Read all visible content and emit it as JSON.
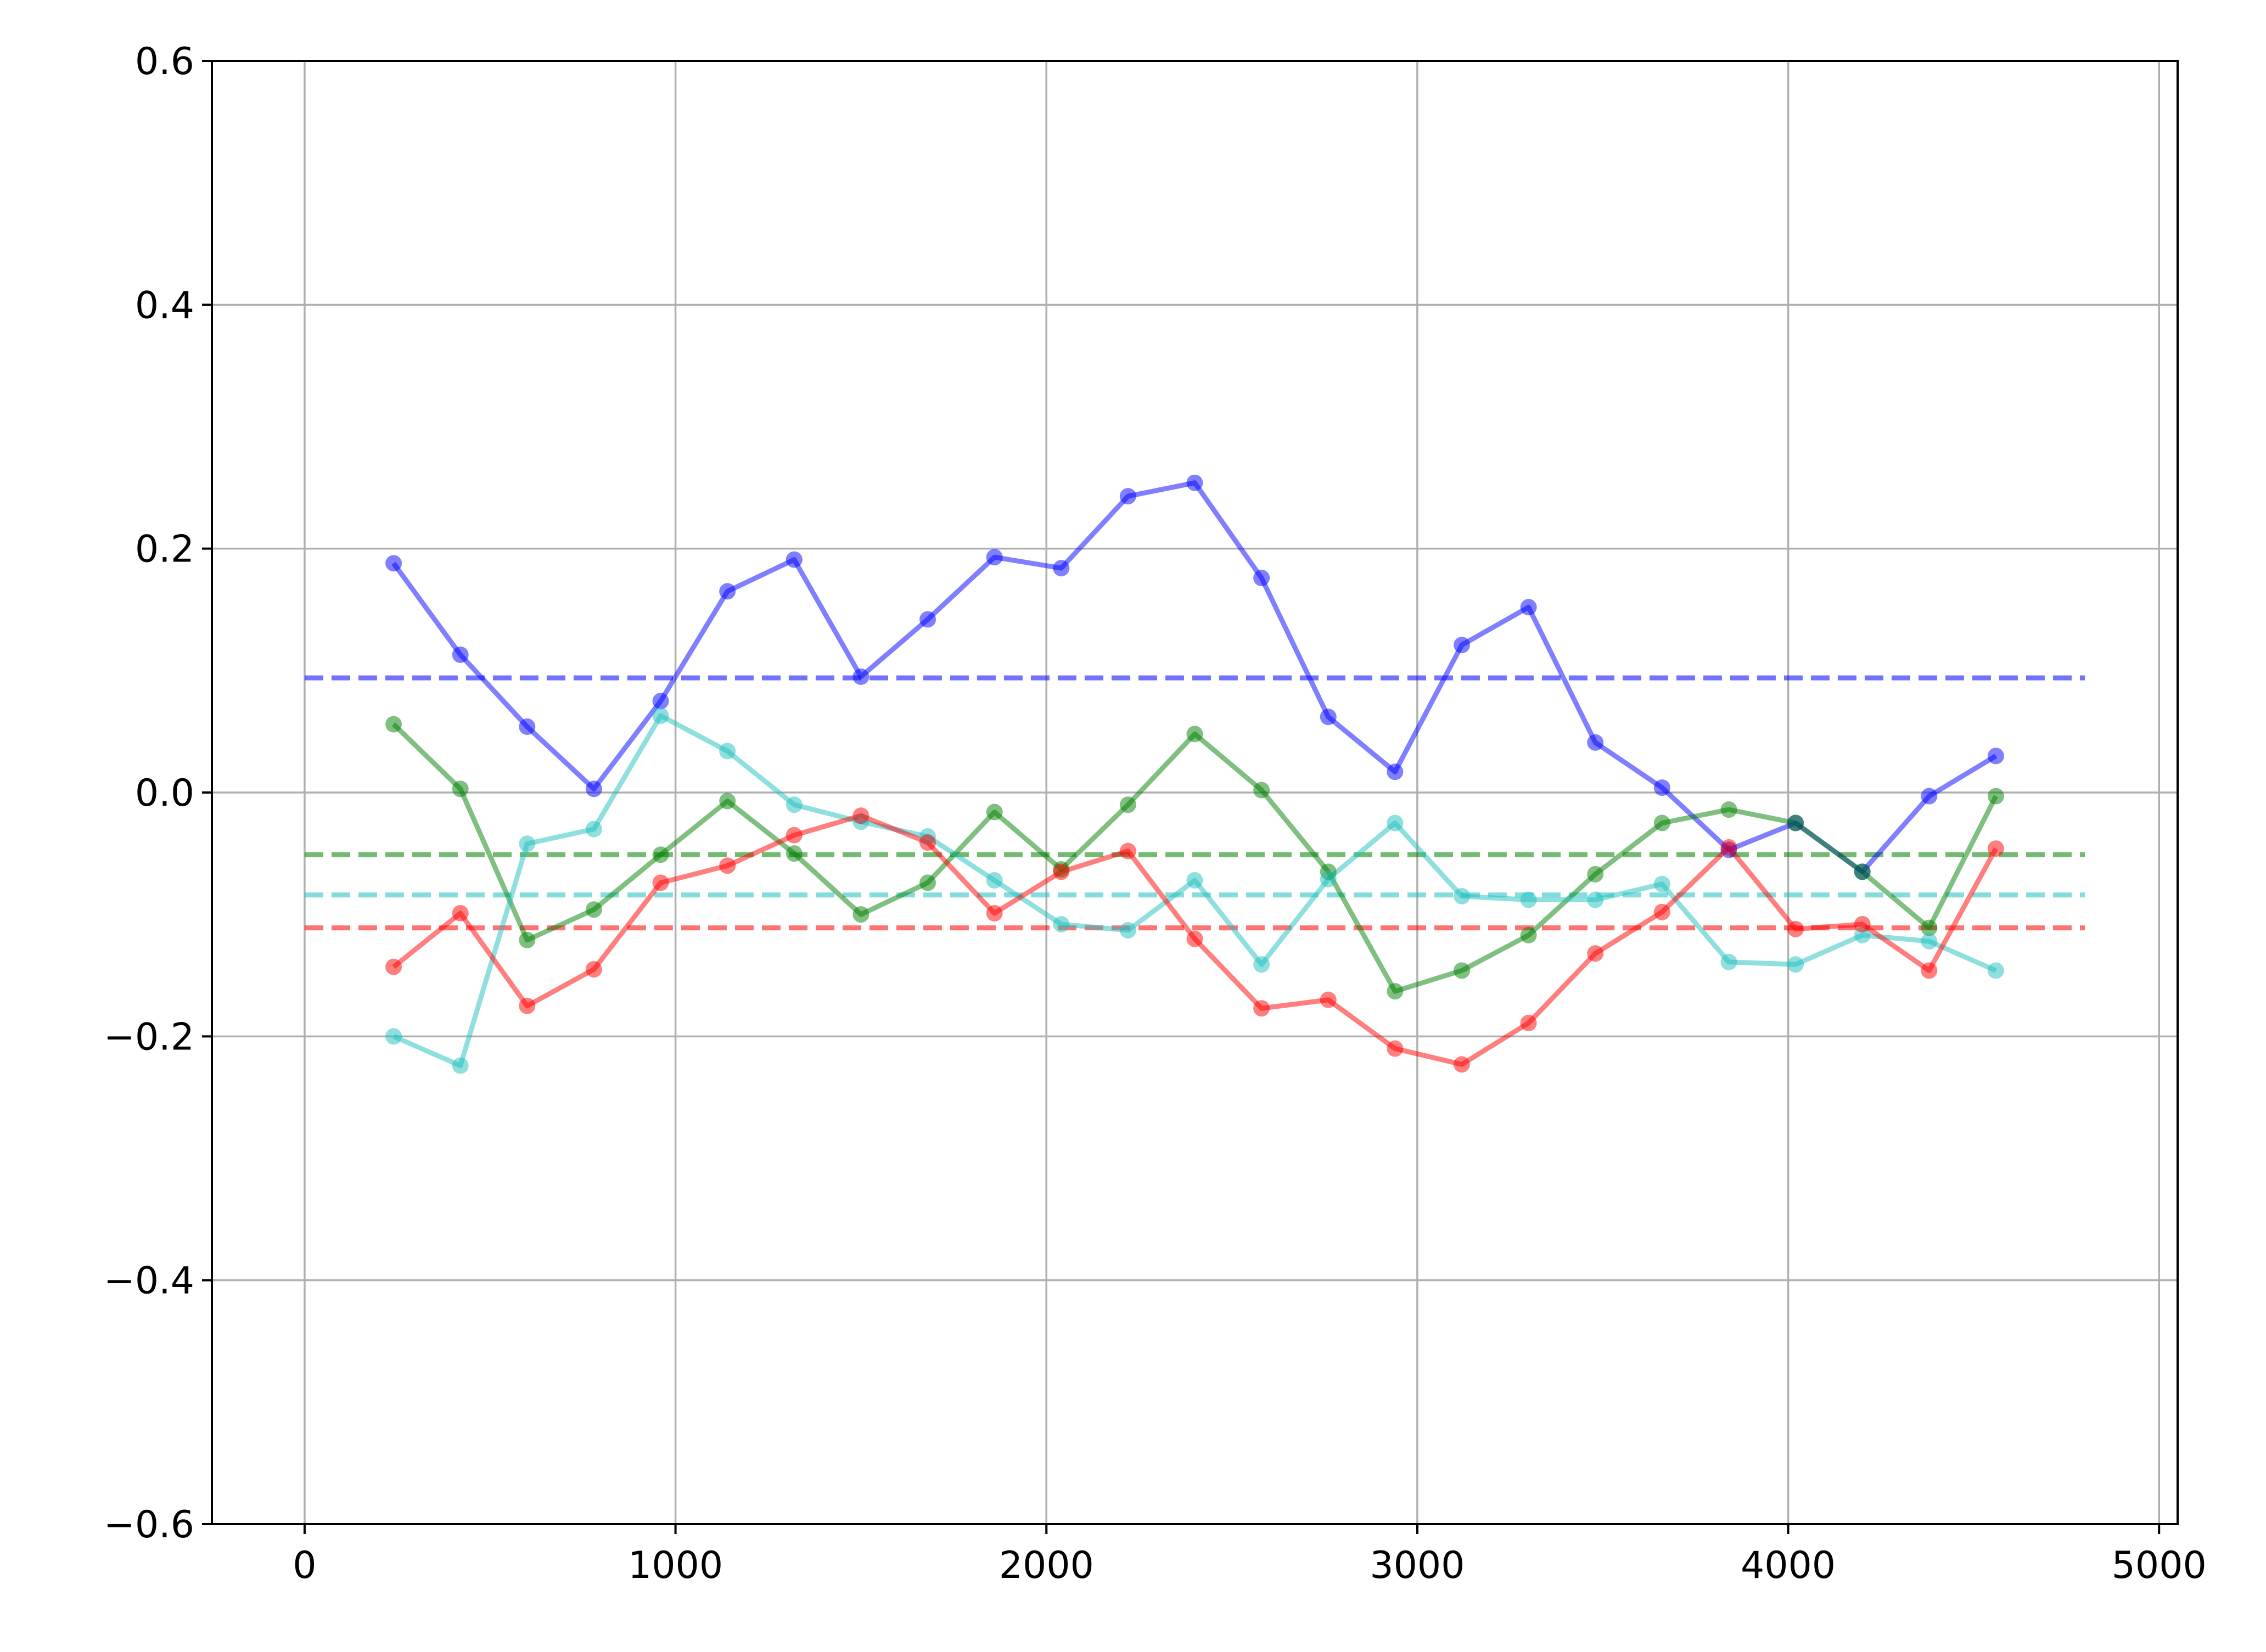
{
  "chart_data": {
    "type": "line",
    "title": "",
    "xlabel": "",
    "ylabel": "",
    "xlim": [
      -250,
      5050
    ],
    "ylim": [
      -0.6,
      0.6
    ],
    "grid": true,
    "x_ticks": [
      0,
      1000,
      2000,
      3000,
      4000,
      5000
    ],
    "x_tick_labels": [
      "0",
      "1000",
      "2000",
      "3000",
      "4000",
      "5000"
    ],
    "y_ticks": [
      -0.6,
      -0.4,
      -0.2,
      0.0,
      0.2,
      0.4,
      0.6
    ],
    "y_tick_labels": [
      "−0.6",
      "−0.4",
      "−0.2",
      "0.0",
      "0.2",
      "0.4",
      "0.6"
    ],
    "x": [
      240,
      420,
      600,
      780,
      960,
      1140,
      1320,
      1500,
      1680,
      1860,
      2040,
      2220,
      2400,
      2580,
      2760,
      2940,
      3120,
      3300,
      3480,
      3660,
      3840,
      4020,
      4200,
      4380,
      4560
    ],
    "series": [
      {
        "color": "#0000ff",
        "values": [
          0.188,
          0.113,
          0.054,
          0.003,
          0.075,
          0.165,
          0.191,
          0.095,
          0.142,
          0.193,
          0.184,
          0.243,
          0.254,
          0.176,
          0.062,
          0.017,
          0.121,
          0.152,
          0.041,
          0.004,
          -0.047,
          -0.025,
          -0.065,
          -0.003,
          0.03
        ],
        "mean": 0.094
      },
      {
        "color": "#008000",
        "values": [
          0.056,
          0.003,
          -0.121,
          -0.096,
          -0.051,
          -0.007,
          -0.05,
          -0.1,
          -0.074,
          -0.016,
          -0.063,
          -0.01,
          0.048,
          0.002,
          -0.065,
          -0.163,
          -0.146,
          -0.117,
          -0.067,
          -0.025,
          -0.014,
          -0.025,
          -0.065,
          -0.111,
          -0.003
        ],
        "mean": -0.051
      },
      {
        "color": "#20c0c0",
        "values": [
          -0.2,
          -0.224,
          -0.042,
          -0.03,
          0.063,
          0.034,
          -0.01,
          -0.024,
          -0.036,
          -0.072,
          -0.108,
          -0.113,
          -0.072,
          -0.141,
          -0.071,
          -0.025,
          -0.085,
          -0.088,
          -0.088,
          -0.075,
          -0.139,
          -0.141,
          -0.117,
          -0.122,
          -0.146
        ],
        "mean": -0.084
      },
      {
        "color": "#ff0000",
        "values": [
          -0.143,
          -0.099,
          -0.175,
          -0.145,
          -0.074,
          -0.06,
          -0.035,
          -0.019,
          -0.041,
          -0.099,
          -0.065,
          -0.048,
          -0.12,
          -0.177,
          -0.17,
          -0.21,
          -0.223,
          -0.189,
          -0.132,
          -0.098,
          -0.045,
          -0.112,
          -0.108,
          -0.146,
          -0.046
        ],
        "mean": -0.111
      }
    ],
    "mean_line_xrange": [
      0,
      4800
    ]
  }
}
